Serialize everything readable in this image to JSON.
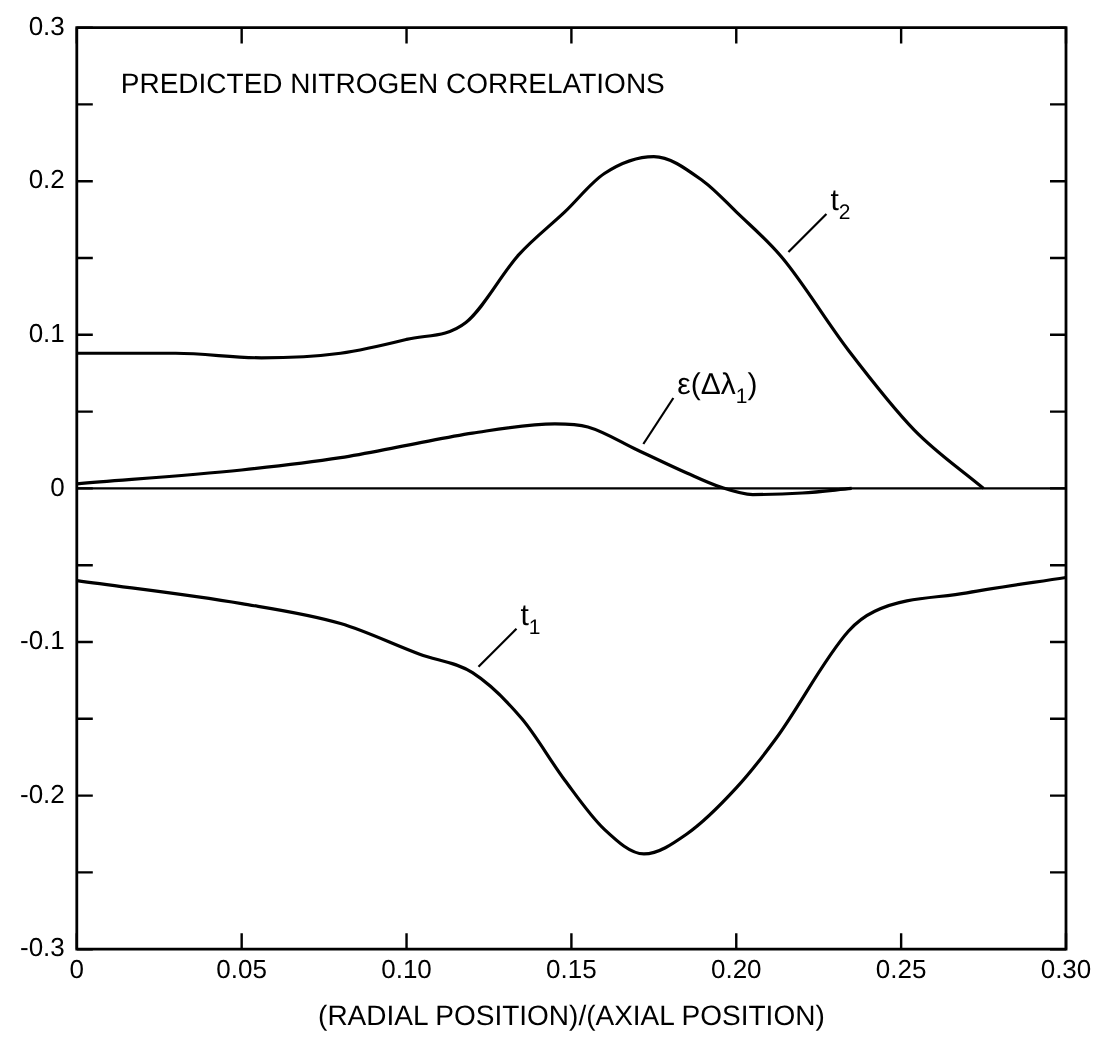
{
  "chart_data": {
    "type": "line",
    "title": "PREDICTED NITROGEN CORRELATIONS",
    "xlabel": "(RADIAL POSITION)/(AXIAL POSITION)",
    "xlim": [
      0,
      0.3
    ],
    "xticks": [
      0,
      0.05,
      {
        "value": 0.1,
        "label": "0.10"
      },
      0.15,
      {
        "value": 0.2,
        "label": "0.20"
      },
      0.25,
      {
        "value": 0.3,
        "label": "0.30"
      }
    ],
    "ylim": [
      -0.3,
      0.3
    ],
    "yticks": [
      -0.3,
      {
        "value": -0.25,
        "label": null
      },
      -0.2,
      {
        "value": -0.15,
        "label": null
      },
      -0.1,
      {
        "value": -0.05,
        "label": null
      },
      0,
      {
        "value": 0.05,
        "label": null
      },
      0.1,
      {
        "value": 0.15,
        "label": null
      },
      0.2,
      {
        "value": 0.25,
        "label": null
      },
      0.3
    ],
    "grid": false,
    "legend": false,
    "marker": "none",
    "line_style": "solid",
    "ref_lines": [
      {
        "axis": "y",
        "value": 0,
        "color": "#000000"
      }
    ],
    "series": [
      {
        "name": "t$_{2}$",
        "color": "#000000",
        "x": [
          0,
          0.03,
          0.056,
          0.08,
          0.1,
          0.118,
          0.134,
          0.148,
          0.16,
          0.175,
          0.19,
          0.2,
          0.214,
          0.234,
          0.254,
          0.275
        ],
        "values": [
          0.088,
          0.088,
          0.085,
          0.088,
          0.097,
          0.108,
          0.152,
          0.18,
          0.205,
          0.216,
          0.2,
          0.18,
          0.15,
          0.09,
          0.038,
          0
        ]
      },
      {
        "name": "ε(Δλ$_{1}$)",
        "color": "#000000",
        "x": [
          0,
          0.05,
          0.08,
          0.1,
          0.12,
          0.145,
          0.155,
          0.17,
          0.185,
          0.195,
          0.205,
          0.22,
          0.235
        ],
        "values": [
          0.003,
          0.012,
          0.02,
          0.028,
          0.036,
          0.042,
          0.04,
          0.025,
          0.01,
          0.001,
          -0.004,
          -0.003,
          0
        ]
      },
      {
        "name": "t$_{1}$",
        "color": "#000000",
        "x": [
          0,
          0.05,
          0.08,
          0.104,
          0.12,
          0.135,
          0.148,
          0.16,
          0.172,
          0.185,
          0.2,
          0.212,
          0.234,
          0.242,
          0.27,
          0.3
        ],
        "values": [
          -0.06,
          -0.075,
          -0.088,
          -0.108,
          -0.12,
          -0.15,
          -0.19,
          -0.222,
          -0.238,
          -0.225,
          -0.195,
          -0.163,
          -0.093,
          -0.08,
          -0.068,
          -0.058
        ]
      }
    ]
  }
}
